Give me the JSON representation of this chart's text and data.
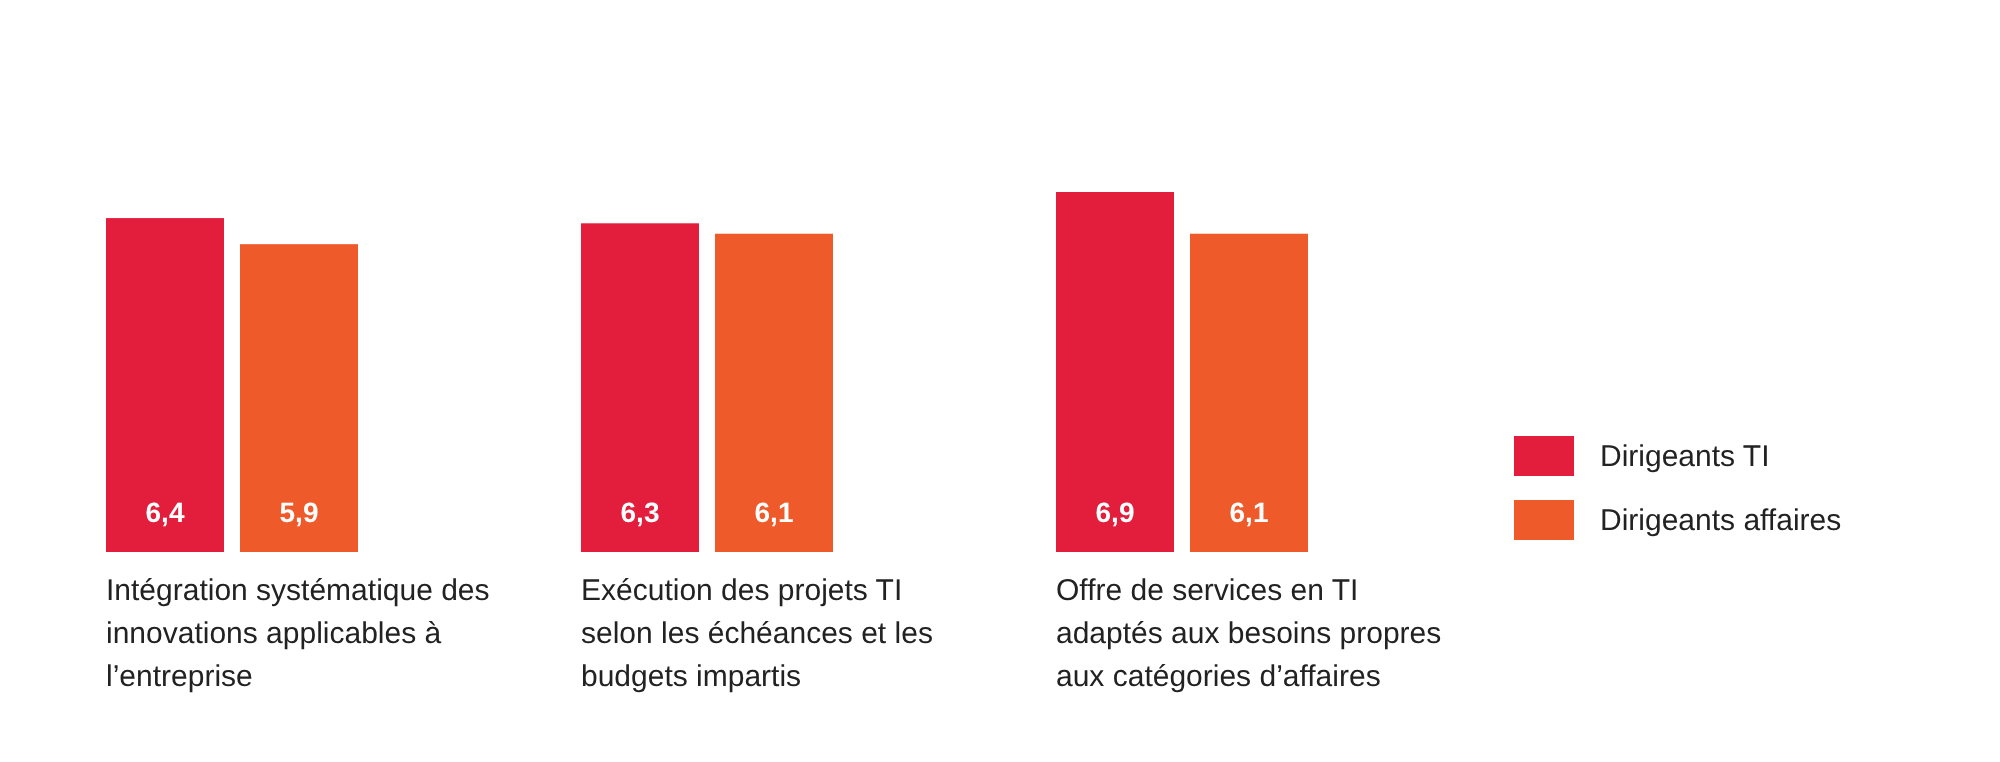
{
  "chart_data": {
    "type": "bar",
    "categories": [
      "Intégration systématique des innovations applicables à l’entreprise",
      "Exécution des projets TI selon les échéances et les budgets impartis",
      "Offre de services en TI adaptés aux besoins propres aux catégories d’affaires"
    ],
    "series": [
      {
        "name": "Dirigeants TI",
        "color": "#e31d3c",
        "values": [
          6.4,
          6.3,
          6.9
        ],
        "value_labels": [
          "6,4",
          "6,3",
          "6,9"
        ]
      },
      {
        "name": "Dirigeants affaires",
        "color": "#ef5a2a",
        "values": [
          5.9,
          6.1,
          6.1
        ],
        "value_labels": [
          "5,9",
          "6,1",
          "6,1"
        ]
      }
    ],
    "legend": "right"
  }
}
